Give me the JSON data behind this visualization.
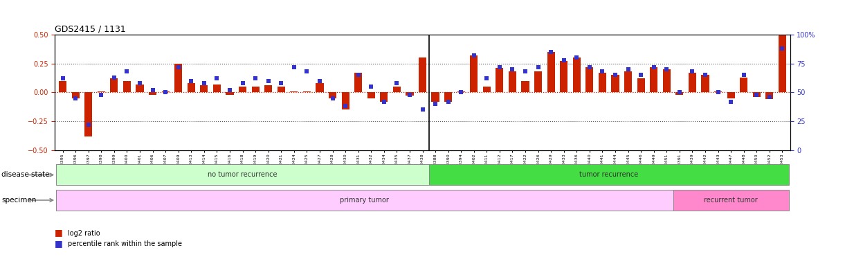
{
  "title": "GDS2415 / 1131",
  "samples": [
    "GSM110395",
    "GSM110396",
    "GSM110397",
    "GSM110398",
    "GSM110399",
    "GSM110400",
    "GSM110401",
    "GSM110406",
    "GSM110407",
    "GSM110409",
    "GSM110413",
    "GSM110414",
    "GSM110415",
    "GSM110416",
    "GSM110418",
    "GSM110419",
    "GSM110420",
    "GSM110421",
    "GSM110424",
    "GSM110425",
    "GSM110427",
    "GSM110428",
    "GSM110430",
    "GSM110431",
    "GSM110432",
    "GSM110434",
    "GSM110435",
    "GSM110437",
    "GSM110438",
    "GSM110388",
    "GSM110390",
    "GSM110394",
    "GSM110402",
    "GSM110411",
    "GSM110412",
    "GSM110417",
    "GSM110422",
    "GSM110426",
    "GSM110429",
    "GSM110433",
    "GSM110436",
    "GSM110440",
    "GSM110441",
    "GSM110444",
    "GSM110445",
    "GSM110446",
    "GSM110449",
    "GSM110451",
    "GSM110391",
    "GSM110439",
    "GSM110442",
    "GSM110443",
    "GSM110447",
    "GSM110448",
    "GSM110450",
    "GSM110452",
    "GSM110453"
  ],
  "log2_ratio": [
    0.1,
    -0.05,
    -0.38,
    0.01,
    0.12,
    0.1,
    0.07,
    -0.02,
    0.01,
    0.25,
    0.08,
    0.06,
    0.07,
    -0.02,
    0.05,
    0.05,
    0.06,
    0.05,
    0.01,
    0.01,
    0.08,
    -0.05,
    -0.15,
    0.17,
    -0.05,
    -0.08,
    0.05,
    -0.03,
    0.3,
    -0.08,
    -0.08,
    0.01,
    0.32,
    0.05,
    0.21,
    0.18,
    0.1,
    0.18,
    0.35,
    0.27,
    0.3,
    0.22,
    0.17,
    0.15,
    0.18,
    0.12,
    0.22,
    0.2,
    -0.02,
    0.17,
    0.15,
    0.01,
    -0.05,
    0.13,
    -0.04,
    -0.06,
    0.5
  ],
  "percentile": [
    62,
    45,
    22,
    48,
    63,
    68,
    58,
    52,
    50,
    72,
    60,
    58,
    62,
    52,
    58,
    62,
    60,
    58,
    72,
    68,
    60,
    45,
    38,
    65,
    55,
    42,
    58,
    48,
    35,
    40,
    42,
    50,
    82,
    62,
    72,
    70,
    68,
    72,
    85,
    78,
    80,
    72,
    68,
    65,
    70,
    65,
    72,
    70,
    50,
    68,
    65,
    50,
    42,
    65,
    48,
    46,
    88
  ],
  "no_recurrence_count": 29,
  "recurrence_count": 28,
  "bar_color": "#cc2200",
  "dot_color": "#3333cc",
  "zero_line_color": "#cc2200",
  "bg_color": "#ffffff",
  "left_axis_color": "#cc2200",
  "right_axis_color": "#3333cc",
  "ylim": [
    -0.5,
    0.5
  ],
  "yticks_left": [
    -0.5,
    -0.25,
    0.0,
    0.25,
    0.5
  ],
  "yticks_right": [
    0,
    25,
    50,
    75,
    100
  ],
  "disease_state_no_recurrence": "no tumor recurrence",
  "disease_state_recurrence": "tumor recurrence",
  "specimen_primary": "primary tumor",
  "specimen_recurrent": "recurrent tumor",
  "color_no_recurrence": "#ccffcc",
  "color_recurrence": "#44dd44",
  "color_primary": "#ffccff",
  "color_recurrent": "#ff88cc",
  "primary_count": 48,
  "recurrent_count": 9,
  "label_disease": "disease state",
  "label_specimen": "specimen",
  "legend_log2": "log2 ratio",
  "legend_pct": "percentile rank within the sample"
}
